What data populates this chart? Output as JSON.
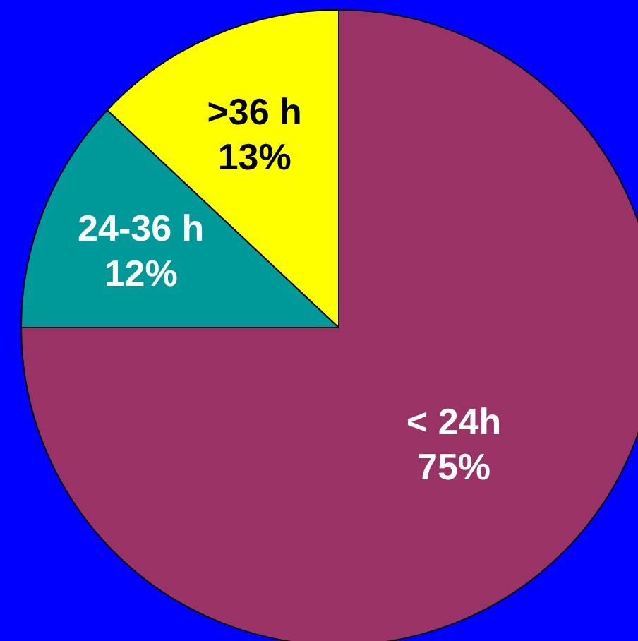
{
  "chart_data": {
    "type": "pie",
    "categories": [
      "< 24h",
      "24-36 h",
      ">36 h"
    ],
    "values": [
      75,
      12,
      13
    ],
    "value_labels": [
      "75%",
      "12%",
      "13%"
    ],
    "colors": [
      "#993366",
      "#009999",
      "#ffff00"
    ]
  }
}
